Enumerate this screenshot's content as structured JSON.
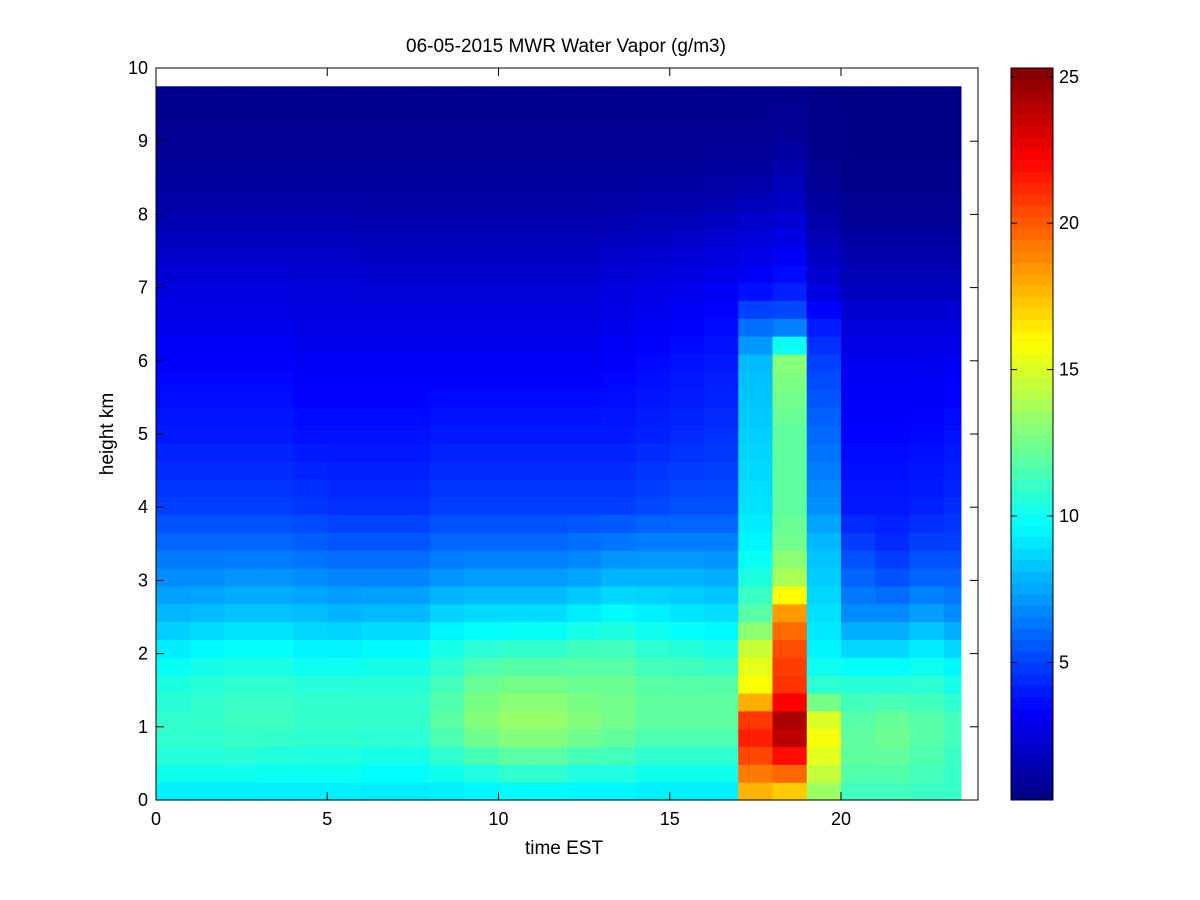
{
  "chart_data": {
    "type": "heatmap",
    "title": "06-05-2015 MWR Water Vapor (g/m3)",
    "xlabel": "time EST",
    "ylabel": "height km",
    "xlim": [
      0,
      24
    ],
    "ylim": [
      0,
      10
    ],
    "x_ticks": [
      0,
      5,
      10,
      15,
      20
    ],
    "y_ticks": [
      0,
      1,
      2,
      3,
      4,
      5,
      6,
      7,
      8,
      9,
      10
    ],
    "x": [
      0,
      1,
      2,
      3,
      4,
      5,
      6,
      7,
      8,
      9,
      10,
      11,
      12,
      13,
      14,
      15,
      16,
      17,
      18,
      19,
      20,
      21,
      22,
      23
    ],
    "x_end": 23.5,
    "y_top": 9.75,
    "colormap": "jet",
    "colorbar": {
      "min": 0.3,
      "max": 25.3,
      "ticks": [
        5,
        10,
        15,
        20,
        25
      ]
    },
    "profile_heights_km": [
      0.0,
      0.5,
      1.0,
      1.5,
      2.0,
      2.5,
      3.0,
      3.5,
      4.0,
      5.0,
      6.0,
      6.5,
      7.0,
      8.0,
      8.5,
      9.0,
      9.75
    ],
    "profiles": [
      {
        "hour": 0,
        "values": [
          9.0,
          10.5,
          11.0,
          10.5,
          9.5,
          8.0,
          7.0,
          6.0,
          5.0,
          4.0,
          3.4,
          3.0,
          2.6,
          1.4,
          1.0,
          0.8,
          0.6
        ]
      },
      {
        "hour": 1,
        "values": [
          9.0,
          10.5,
          11.0,
          10.8,
          9.8,
          8.2,
          7.0,
          6.0,
          5.0,
          4.0,
          3.4,
          3.0,
          2.6,
          1.4,
          1.0,
          0.8,
          0.6
        ]
      },
      {
        "hour": 2,
        "values": [
          9.0,
          10.5,
          11.2,
          11.0,
          10.0,
          8.4,
          7.2,
          6.0,
          5.0,
          4.0,
          3.4,
          3.0,
          2.6,
          1.4,
          1.0,
          0.8,
          0.6
        ]
      },
      {
        "hour": 3,
        "values": [
          9.0,
          10.3,
          11.2,
          11.0,
          10.0,
          8.4,
          7.2,
          6.0,
          5.0,
          4.0,
          3.4,
          3.0,
          2.6,
          1.4,
          1.0,
          0.8,
          0.6
        ]
      },
      {
        "hour": 4,
        "values": [
          9.0,
          10.3,
          11.0,
          10.8,
          9.6,
          8.2,
          7.0,
          5.8,
          4.8,
          3.8,
          3.2,
          2.8,
          2.5,
          1.4,
          1.0,
          0.8,
          0.6
        ]
      },
      {
        "hour": 5,
        "values": [
          9.0,
          10.3,
          11.0,
          10.8,
          9.6,
          8.0,
          6.8,
          5.6,
          4.6,
          3.8,
          3.2,
          2.8,
          2.5,
          1.4,
          1.0,
          0.8,
          0.6
        ]
      },
      {
        "hour": 6,
        "values": [
          9.0,
          10.0,
          11.0,
          10.8,
          9.8,
          8.2,
          6.8,
          5.6,
          4.6,
          3.8,
          3.2,
          2.8,
          2.4,
          1.3,
          1.0,
          0.8,
          0.6
        ]
      },
      {
        "hour": 7,
        "values": [
          9.0,
          10.0,
          11.0,
          10.8,
          9.8,
          8.2,
          6.8,
          5.6,
          4.6,
          3.8,
          3.2,
          2.8,
          2.4,
          1.3,
          1.0,
          0.8,
          0.6
        ]
      },
      {
        "hour": 8,
        "values": [
          9.0,
          10.5,
          12.0,
          11.5,
          10.5,
          8.8,
          7.2,
          6.0,
          5.0,
          4.0,
          3.2,
          2.8,
          2.4,
          1.3,
          1.0,
          0.8,
          0.6
        ]
      },
      {
        "hour": 9,
        "values": [
          9.0,
          11.0,
          13.0,
          12.5,
          11.0,
          9.0,
          7.4,
          6.0,
          5.0,
          4.0,
          3.2,
          2.8,
          2.4,
          1.3,
          1.0,
          0.8,
          0.6
        ]
      },
      {
        "hour": 10,
        "values": [
          9.0,
          11.5,
          13.5,
          12.8,
          11.2,
          9.0,
          7.4,
          6.0,
          5.0,
          4.0,
          3.2,
          2.8,
          2.4,
          1.3,
          1.0,
          0.8,
          0.6
        ]
      },
      {
        "hour": 11,
        "values": [
          9.0,
          11.5,
          13.5,
          12.8,
          11.2,
          9.0,
          7.4,
          6.0,
          5.0,
          4.0,
          3.2,
          2.8,
          2.4,
          1.3,
          1.0,
          0.8,
          0.6
        ]
      },
      {
        "hour": 12,
        "values": [
          9.0,
          11.0,
          13.0,
          12.5,
          11.5,
          9.5,
          7.6,
          6.2,
          5.0,
          4.0,
          3.2,
          2.8,
          2.4,
          1.3,
          1.0,
          0.8,
          0.6
        ]
      },
      {
        "hour": 13,
        "values": [
          9.0,
          11.0,
          12.5,
          12.5,
          11.5,
          9.8,
          8.0,
          6.4,
          5.0,
          4.0,
          3.4,
          3.0,
          2.6,
          1.4,
          1.0,
          0.8,
          0.6
        ]
      },
      {
        "hour": 14,
        "values": [
          9.0,
          10.5,
          12.0,
          12.0,
          11.0,
          9.5,
          8.0,
          6.6,
          5.2,
          4.2,
          3.6,
          3.2,
          2.8,
          1.5,
          1.0,
          0.8,
          0.6
        ]
      },
      {
        "hour": 15,
        "values": [
          9.0,
          10.5,
          12.0,
          12.0,
          10.8,
          9.2,
          8.0,
          6.6,
          5.4,
          4.4,
          3.8,
          3.4,
          3.0,
          1.6,
          1.0,
          0.8,
          0.6
        ]
      },
      {
        "hour": 16,
        "values": [
          9.0,
          10.5,
          12.0,
          12.0,
          10.5,
          9.0,
          7.8,
          6.6,
          5.4,
          4.6,
          4.0,
          3.6,
          3.2,
          1.8,
          1.1,
          0.8,
          0.6
        ]
      },
      {
        "hour": 17,
        "values": [
          17.0,
          20.0,
          22.0,
          16.0,
          15.0,
          12.0,
          10.5,
          9.5,
          9.0,
          8.5,
          8.0,
          6.0,
          3.5,
          2.0,
          1.2,
          0.8,
          0.6
        ]
      },
      {
        "hour": 18,
        "values": [
          16.0,
          21.0,
          25.0,
          21.0,
          20.5,
          19.0,
          14.0,
          12.5,
          12.0,
          12.0,
          13.0,
          6.0,
          4.0,
          2.2,
          1.6,
          1.0,
          0.6
        ]
      },
      {
        "hour": 19,
        "values": [
          13.0,
          15.0,
          16.0,
          11.0,
          9.5,
          9.0,
          8.5,
          8.0,
          7.0,
          6.0,
          5.0,
          4.0,
          2.5,
          1.2,
          0.8,
          0.6,
          0.5
        ]
      },
      {
        "hour": 20,
        "values": [
          11.0,
          12.0,
          12.0,
          11.0,
          9.0,
          7.0,
          6.0,
          5.0,
          4.0,
          3.5,
          3.0,
          2.5,
          1.8,
          0.8,
          0.6,
          0.5,
          0.5
        ]
      },
      {
        "hour": 21,
        "values": [
          11.0,
          12.0,
          12.5,
          11.0,
          9.0,
          7.0,
          5.5,
          4.5,
          4.0,
          3.5,
          3.0,
          2.5,
          1.8,
          0.8,
          0.6,
          0.5,
          0.5
        ]
      },
      {
        "hour": 22,
        "values": [
          11.0,
          11.5,
          12.0,
          11.0,
          9.5,
          7.5,
          6.0,
          5.0,
          4.2,
          3.6,
          3.0,
          2.5,
          1.8,
          0.8,
          0.6,
          0.5,
          0.5
        ]
      },
      {
        "hour": 23,
        "values": [
          11.0,
          11.0,
          11.5,
          10.5,
          9.0,
          7.0,
          6.0,
          5.0,
          4.5,
          3.8,
          3.2,
          2.6,
          1.8,
          0.8,
          0.6,
          0.5,
          0.5
        ]
      }
    ]
  }
}
